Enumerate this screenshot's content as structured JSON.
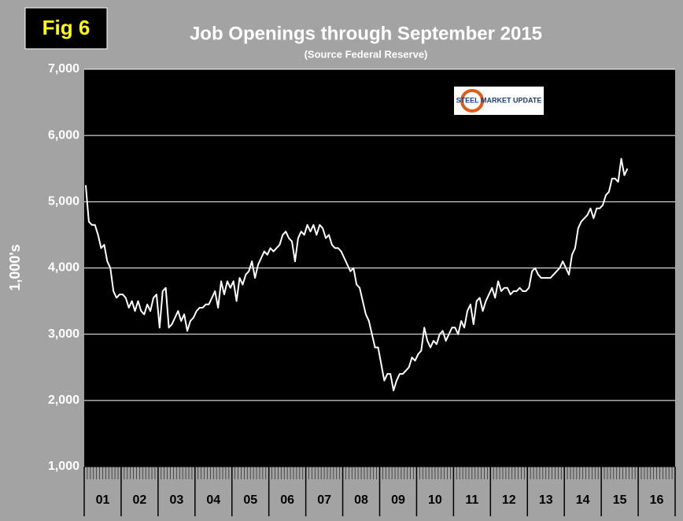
{
  "chart_data": {
    "type": "line",
    "title": "Job Openings through September 2015",
    "subtitle": "(Source Federal Reserve)",
    "figure_label": "Fig 6",
    "logo": "STEEL MARKET UPDATE",
    "y_label": "1,000's",
    "categories": [
      "01",
      null,
      null,
      null,
      null,
      null,
      null,
      null,
      null,
      null,
      null,
      null,
      "02",
      null,
      null,
      null,
      null,
      null,
      null,
      null,
      null,
      null,
      null,
      null,
      "03",
      null,
      null,
      null,
      null,
      null,
      null,
      null,
      null,
      null,
      null,
      null,
      "04",
      null,
      null,
      null,
      null,
      null,
      null,
      null,
      null,
      null,
      null,
      null,
      "05",
      null,
      null,
      null,
      null,
      null,
      null,
      null,
      null,
      null,
      null,
      null,
      "06",
      null,
      null,
      null,
      null,
      null,
      null,
      null,
      null,
      null,
      null,
      null,
      "07",
      null,
      null,
      null,
      null,
      null,
      null,
      null,
      null,
      null,
      null,
      null,
      "08",
      null,
      null,
      null,
      null,
      null,
      null,
      null,
      null,
      null,
      null,
      null,
      "09",
      null,
      null,
      null,
      null,
      null,
      null,
      null,
      null,
      null,
      null,
      null,
      "10",
      null,
      null,
      null,
      null,
      null,
      null,
      null,
      null,
      null,
      null,
      null,
      "11",
      null,
      null,
      null,
      null,
      null,
      null,
      null,
      null,
      null,
      null,
      null,
      "12",
      null,
      null,
      null,
      null,
      null,
      null,
      null,
      null,
      null,
      null,
      null,
      "13",
      null,
      null,
      null,
      null,
      null,
      null,
      null,
      null,
      null,
      null,
      null,
      "14",
      null,
      null,
      null,
      null,
      null,
      null,
      null,
      null,
      null,
      null,
      null,
      "15",
      null,
      null,
      null,
      null,
      null,
      null,
      null,
      null,
      null,
      null,
      null,
      "16",
      null,
      null,
      null,
      null,
      null,
      null,
      null,
      null,
      null,
      null,
      null
    ],
    "values": [
      5250,
      4700,
      4650,
      4650,
      4500,
      4300,
      4350,
      4100,
      4000,
      3650,
      3550,
      3600,
      3600,
      3550,
      3400,
      3500,
      3350,
      3500,
      3350,
      3300,
      3450,
      3350,
      3550,
      3600,
      3100,
      3650,
      3700,
      3100,
      3150,
      3250,
      3350,
      3200,
      3300,
      3050,
      3200,
      3250,
      3350,
      3400,
      3400,
      3450,
      3450,
      3550,
      3650,
      3400,
      3800,
      3600,
      3800,
      3700,
      3800,
      3500,
      3850,
      3750,
      3900,
      3950,
      4100,
      3850,
      4050,
      4150,
      4250,
      4200,
      4300,
      4250,
      4300,
      4350,
      4500,
      4550,
      4450,
      4400,
      4100,
      4450,
      4550,
      4500,
      4650,
      4550,
      4650,
      4500,
      4650,
      4600,
      4450,
      4500,
      4350,
      4300,
      4300,
      4250,
      4150,
      4050,
      3950,
      4000,
      3750,
      3700,
      3500,
      3300,
      3200,
      3000,
      2800,
      2800,
      2550,
      2300,
      2400,
      2400,
      2150,
      2300,
      2400,
      2400,
      2450,
      2500,
      2650,
      2600,
      2700,
      2750,
      3100,
      2900,
      2800,
      2900,
      2850,
      3000,
      3050,
      2900,
      3000,
      3100,
      3100,
      3000,
      3200,
      3100,
      3350,
      3450,
      3150,
      3500,
      3550,
      3350,
      3500,
      3600,
      3700,
      3550,
      3800,
      3650,
      3700,
      3700,
      3600,
      3650,
      3650,
      3700,
      3650,
      3650,
      3700,
      3950,
      4000,
      3900,
      3850,
      3850,
      3850,
      3850,
      3900,
      3950,
      4000,
      4100,
      4000,
      3900,
      4200,
      4300,
      4600,
      4700,
      4750,
      4800,
      4900,
      4750,
      4900,
      4900,
      4950,
      5100,
      5150,
      5350,
      5350,
      5300,
      5650,
      5400,
      5500,
      null,
      null,
      null,
      null,
      null,
      null,
      null,
      null,
      null,
      null,
      null,
      null,
      null,
      null,
      null
    ],
    "color": "#ffffff",
    "ylim": [
      1000,
      7000
    ],
    "yticks": [
      {
        "value": 1000,
        "label": "1,000"
      },
      {
        "value": 2000,
        "label": "2,000"
      },
      {
        "value": 3000,
        "label": "3,000"
      },
      {
        "value": 4000,
        "label": "4,000"
      },
      {
        "value": 5000,
        "label": "5,000"
      },
      {
        "value": 6000,
        "label": "6,000"
      },
      {
        "value": 7000,
        "label": "7,000"
      }
    ],
    "grid": true
  }
}
